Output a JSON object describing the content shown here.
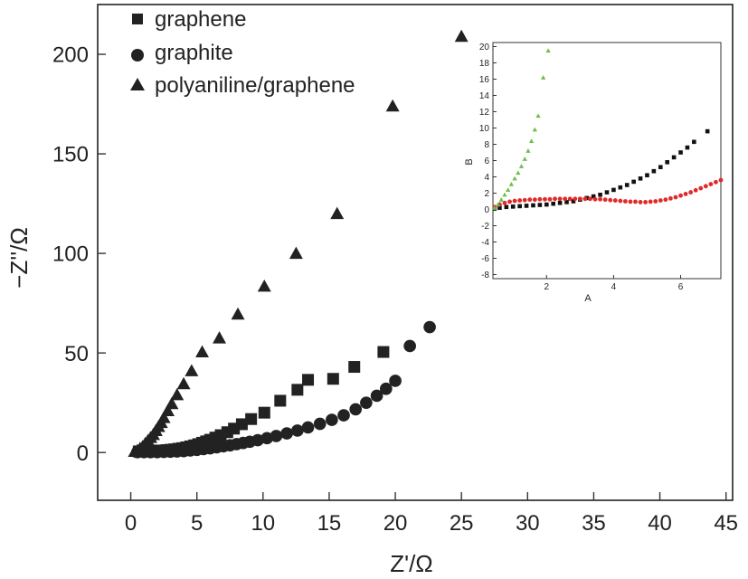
{
  "chart_data": [
    {
      "id": "main",
      "type": "scatter",
      "xlabel": "Z'/Ω",
      "ylabel": "−Z''/Ω",
      "xlim": [
        -2.5,
        45.5
      ],
      "ylim": [
        -24,
        225
      ],
      "xticks": [
        0,
        5,
        10,
        15,
        20,
        25,
        30,
        35,
        40,
        45
      ],
      "yticks": [
        0,
        50,
        100,
        150,
        200
      ],
      "grid": false,
      "legend_position": "top-left",
      "series": [
        {
          "name": "graphene",
          "marker": "square",
          "color": "#222222",
          "x": [
            0.6,
            0.9,
            1.2,
            1.5,
            1.8,
            2.1,
            2.4,
            2.7,
            3.0,
            3.3,
            3.6,
            3.9,
            4.2,
            4.5,
            4.8,
            5.1,
            5.4,
            5.7,
            6.0,
            6.4,
            6.8,
            7.3,
            7.8,
            8.4,
            9.1,
            10.1,
            11.3,
            12.6,
            13.4,
            15.3,
            16.9,
            19.1
          ],
          "y": [
            0.5,
            0.8,
            1,
            1,
            1,
            1,
            1,
            1.2,
            1.4,
            1.6,
            1.9,
            2.2,
            2.6,
            3.1,
            3.6,
            4.2,
            4.9,
            5.6,
            6.4,
            7.5,
            8.7,
            10.2,
            12,
            14.2,
            16.8,
            20,
            26,
            31.5,
            36.5,
            37,
            43,
            50.5
          ]
        },
        {
          "name": "graphite",
          "marker": "circle",
          "color": "#222222",
          "x": [
            0.5,
            1.0,
            1.5,
            2.0,
            2.5,
            3.0,
            3.5,
            4.0,
            4.5,
            5.0,
            5.5,
            6.0,
            6.5,
            7.0,
            7.5,
            8.0,
            8.5,
            9.0,
            9.6,
            10.3,
            11.0,
            11.8,
            12.6,
            13.4,
            14.3,
            15.2,
            16.1,
            17.0,
            17.8,
            18.6,
            19.3,
            20.0,
            21.1,
            22.6
          ],
          "y": [
            0.2,
            0.2,
            0.2,
            0.2,
            0.3,
            0.4,
            0.5,
            0.7,
            1,
            1.3,
            1.7,
            2.1,
            2.6,
            3.1,
            3.6,
            4.2,
            4.8,
            5.4,
            6.2,
            7.2,
            8.3,
            9.6,
            11,
            12.6,
            14.4,
            16.4,
            18.7,
            21.7,
            25,
            28.5,
            32,
            36,
            53.5,
            63
          ]
        },
        {
          "name": "polyaniline/graphene",
          "marker": "triangle",
          "color": "#222222",
          "x": [
            0.3,
            0.5,
            0.7,
            0.9,
            1.1,
            1.3,
            1.5,
            1.7,
            1.9,
            2.1,
            2.3,
            2.5,
            2.8,
            3.1,
            3.5,
            4.0,
            4.6,
            5.4,
            6.7,
            8.1,
            10.1,
            12.5,
            15.6,
            19.8,
            25.0
          ],
          "y": [
            0.5,
            1,
            2,
            3,
            4.5,
            6,
            7.5,
            9,
            11,
            13,
            15,
            17.5,
            21,
            24.5,
            29,
            34.5,
            41,
            50.5,
            57.5,
            69.5,
            83.5,
            100,
            120,
            174,
            209
          ]
        }
      ]
    },
    {
      "id": "inset",
      "type": "scatter",
      "xlabel": "A",
      "ylabel": "B",
      "xlim": [
        0.4,
        7.2
      ],
      "ylim": [
        -8.5,
        20.5
      ],
      "xticks": [
        2,
        4,
        6
      ],
      "yticks": [
        -8,
        -6,
        -4,
        -2,
        0,
        2,
        4,
        6,
        8,
        10,
        12,
        14,
        16,
        18,
        20
      ],
      "grid": false,
      "series": [
        {
          "name": "graphene",
          "marker": "square",
          "color": "#111111",
          "x": [
            0.45,
            0.6,
            0.8,
            1.0,
            1.2,
            1.4,
            1.6,
            1.8,
            2.0,
            2.2,
            2.4,
            2.6,
            2.8,
            3.0,
            3.2,
            3.4,
            3.6,
            3.8,
            4.0,
            4.2,
            4.4,
            4.6,
            4.8,
            5.0,
            5.2,
            5.4,
            5.6,
            5.8,
            6.0,
            6.2,
            6.4,
            6.8
          ],
          "y": [
            0.1,
            0.2,
            0.3,
            0.35,
            0.4,
            0.45,
            0.5,
            0.55,
            0.6,
            0.7,
            0.8,
            0.9,
            1.0,
            1.2,
            1.4,
            1.6,
            1.8,
            2.1,
            2.4,
            2.7,
            3.0,
            3.4,
            3.8,
            4.2,
            4.7,
            5.2,
            5.8,
            6.4,
            7.0,
            7.6,
            8.3,
            9.6
          ]
        },
        {
          "name": "graphite",
          "marker": "circle",
          "color": "#e02a2a",
          "x": [
            0.45,
            0.6,
            0.75,
            0.9,
            1.05,
            1.2,
            1.35,
            1.5,
            1.65,
            1.8,
            1.95,
            2.1,
            2.25,
            2.4,
            2.55,
            2.7,
            2.85,
            3.0,
            3.15,
            3.3,
            3.45,
            3.6,
            3.75,
            3.9,
            4.05,
            4.2,
            4.35,
            4.5,
            4.65,
            4.8,
            4.95,
            5.1,
            5.25,
            5.4,
            5.55,
            5.7,
            5.85,
            6.0,
            6.15,
            6.3,
            6.45,
            6.6,
            6.75,
            6.9,
            7.05,
            7.2
          ],
          "y": [
            0.3,
            0.6,
            0.8,
            0.95,
            1.05,
            1.1,
            1.15,
            1.2,
            1.2,
            1.25,
            1.25,
            1.25,
            1.3,
            1.3,
            1.3,
            1.3,
            1.3,
            1.3,
            1.3,
            1.3,
            1.25,
            1.25,
            1.2,
            1.15,
            1.1,
            1.05,
            1.0,
            0.95,
            0.95,
            0.9,
            0.9,
            0.95,
            1.0,
            1.1,
            1.2,
            1.35,
            1.5,
            1.7,
            1.9,
            2.1,
            2.35,
            2.6,
            2.85,
            3.1,
            3.35,
            3.6
          ]
        },
        {
          "name": "polyaniline/graphene",
          "marker": "triangle",
          "color": "#6cc04a",
          "x": [
            0.45,
            0.55,
            0.65,
            0.75,
            0.85,
            0.95,
            1.05,
            1.15,
            1.25,
            1.35,
            1.45,
            1.55,
            1.65,
            1.75,
            1.9,
            2.05
          ],
          "y": [
            0.2,
            0.6,
            1.2,
            1.8,
            2.4,
            3.1,
            3.8,
            4.5,
            5.3,
            6.2,
            7.2,
            8.4,
            9.8,
            11.5,
            16.2,
            19.5
          ]
        }
      ]
    }
  ]
}
